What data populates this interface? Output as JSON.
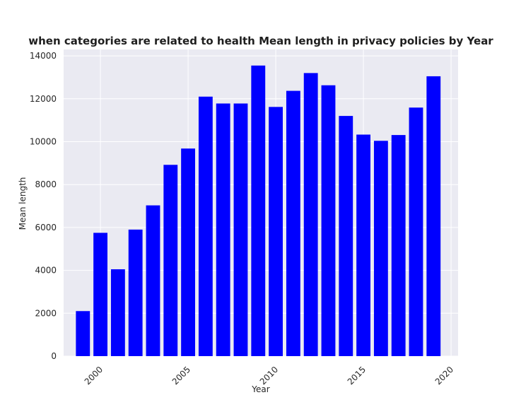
{
  "chart_data": {
    "type": "bar",
    "title": "when categories are related to health Mean length in privacy policies by Year",
    "xlabel": "Year",
    "ylabel": "Mean length",
    "x": [
      1999,
      2000,
      2001,
      2002,
      2003,
      2004,
      2005,
      2006,
      2007,
      2008,
      2009,
      2010,
      2011,
      2012,
      2013,
      2014,
      2015,
      2016,
      2017,
      2018,
      2019
    ],
    "values": [
      2100,
      5750,
      4050,
      5900,
      7030,
      8920,
      9680,
      12100,
      11780,
      11780,
      13550,
      11620,
      12370,
      13200,
      12630,
      11200,
      10330,
      10040,
      10310,
      11590,
      13050
    ],
    "xlim": [
      1997.9,
      2020.4
    ],
    "ylim": [
      0,
      14300
    ],
    "xticks": [
      "2000",
      "2005",
      "2010",
      "2015",
      "2020"
    ],
    "yticks": [
      "0",
      "2000",
      "4000",
      "6000",
      "8000",
      "10000",
      "12000",
      "14000"
    ],
    "grid": true,
    "colors": {
      "bar": "#0000ff",
      "background": "#eaeaf2",
      "grid": "#ffffff"
    }
  }
}
